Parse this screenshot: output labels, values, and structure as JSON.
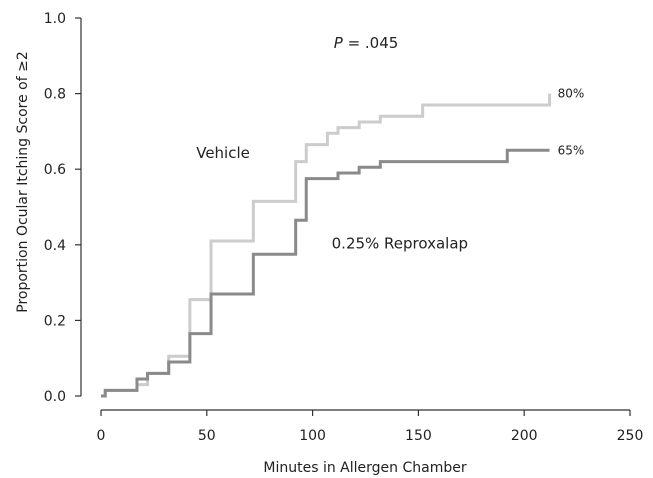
{
  "chart_data": {
    "type": "line",
    "step": true,
    "title": "",
    "xlabel": "Minutes in Allergen Chamber",
    "ylabel": "Proportion  Ocular Itching Score of ≥2",
    "xlim": [
      0,
      250
    ],
    "ylim": [
      0.0,
      1.0
    ],
    "x_ticks": [
      0,
      50,
      100,
      150,
      200,
      250
    ],
    "x_tick_labels": [
      "0",
      "50",
      "100",
      "150",
      "200",
      "250"
    ],
    "y_ticks": [
      0.0,
      0.2,
      0.4,
      0.6,
      0.8,
      1.0
    ],
    "y_tick_labels": [
      "0.0",
      "0.2",
      "0.4",
      "0.6",
      "0.8",
      "1.0"
    ],
    "grid": false,
    "legend": "none",
    "series": [
      {
        "name": "Vehicle",
        "color": "#cccccc",
        "x": [
          0,
          2,
          17,
          22,
          32,
          42,
          52,
          72,
          92,
          97,
          107,
          112,
          122,
          132,
          152,
          212
        ],
        "y": [
          0.0,
          0.015,
          0.03,
          0.06,
          0.105,
          0.255,
          0.41,
          0.515,
          0.62,
          0.665,
          0.695,
          0.71,
          0.725,
          0.74,
          0.77,
          0.8
        ],
        "end_label": "80%",
        "label_x": 45,
        "label_y": 0.63
      },
      {
        "name": "0.25% Reproxalap",
        "color": "#8a8a8a",
        "x": [
          0,
          2,
          17,
          22,
          32,
          42,
          52,
          72,
          92,
          97,
          112,
          122,
          132,
          192,
          212
        ],
        "y": [
          0.0,
          0.015,
          0.045,
          0.06,
          0.09,
          0.165,
          0.27,
          0.375,
          0.465,
          0.575,
          0.59,
          0.605,
          0.62,
          0.65,
          0.65
        ],
        "end_label": "65%",
        "label_x": 109,
        "label_y": 0.39
      }
    ],
    "annotation": {
      "p_label": "P",
      "p_value": " = .045",
      "x": 110,
      "y": 0.92
    }
  }
}
